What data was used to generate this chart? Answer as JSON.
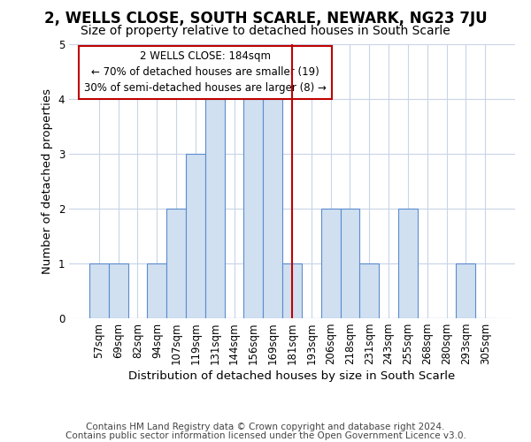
{
  "title": "2, WELLS CLOSE, SOUTH SCARLE, NEWARK, NG23 7JU",
  "subtitle": "Size of property relative to detached houses in South Scarle",
  "xlabel": "Distribution of detached houses by size in South Scarle",
  "ylabel": "Number of detached properties",
  "footnote1": "Contains HM Land Registry data © Crown copyright and database right 2024.",
  "footnote2": "Contains public sector information licensed under the Open Government Licence v3.0.",
  "annotation_line1": "2 WELLS CLOSE: 184sqm",
  "annotation_line2": "← 70% of detached houses are smaller (19)",
  "annotation_line3": "30% of semi-detached houses are larger (8) →",
  "categories": [
    "57sqm",
    "69sqm",
    "82sqm",
    "94sqm",
    "107sqm",
    "119sqm",
    "131sqm",
    "144sqm",
    "156sqm",
    "169sqm",
    "181sqm",
    "193sqm",
    "206sqm",
    "218sqm",
    "231sqm",
    "243sqm",
    "255sqm",
    "268sqm",
    "280sqm",
    "293sqm",
    "305sqm"
  ],
  "values": [
    1,
    1,
    0,
    1,
    2,
    3,
    4,
    0,
    4,
    4,
    1,
    0,
    2,
    2,
    1,
    0,
    2,
    0,
    0,
    1,
    0
  ],
  "bar_color": "#d0e0f0",
  "bar_edge_color": "#5b8cce",
  "vline_x": 10,
  "vline_color": "#c00000",
  "annotation_box_color": "#c00000",
  "ylim": [
    0,
    5
  ],
  "yticks": [
    0,
    1,
    2,
    3,
    4,
    5
  ],
  "grid_color": "#c8d4e8",
  "bg_color": "#ffffff",
  "title_fontsize": 12,
  "subtitle_fontsize": 10,
  "axis_label_fontsize": 9.5,
  "tick_fontsize": 8.5,
  "footnote_fontsize": 7.5
}
